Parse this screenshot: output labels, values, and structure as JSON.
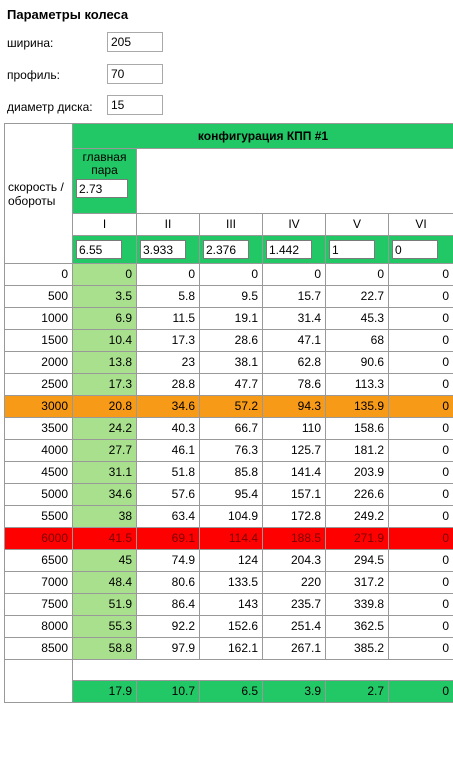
{
  "params": {
    "title": "Параметры колеса",
    "width_label": "ширина:",
    "width_value": "205",
    "profile_label": "профиль:",
    "profile_value": "70",
    "diameter_label": "диаметр диска:",
    "diameter_value": "15"
  },
  "config": {
    "title": "конфигурация КПП #1",
    "speed_label": "скорость / обороты",
    "main_pair_label": "главная пара",
    "main_pair_value": "2.73",
    "gears": [
      {
        "name": "I",
        "ratio": "6.55"
      },
      {
        "name": "II",
        "ratio": "3.933"
      },
      {
        "name": "III",
        "ratio": "2.376"
      },
      {
        "name": "IV",
        "ratio": "1.442"
      },
      {
        "name": "V",
        "ratio": "1"
      },
      {
        "name": "VI",
        "ratio": "0"
      }
    ]
  },
  "colors": {
    "green_header": "#22c766",
    "first_gear_column": "#a8e08e",
    "highlight_orange": "#f79a18",
    "highlight_red": "#ff0000"
  },
  "table": {
    "rows": [
      {
        "rpm": "0",
        "values": [
          "0",
          "0",
          "0",
          "0",
          "0",
          "0"
        ]
      },
      {
        "rpm": "500",
        "values": [
          "3.5",
          "5.8",
          "9.5",
          "15.7",
          "22.7",
          "0"
        ]
      },
      {
        "rpm": "1000",
        "values": [
          "6.9",
          "11.5",
          "19.1",
          "31.4",
          "45.3",
          "0"
        ]
      },
      {
        "rpm": "1500",
        "values": [
          "10.4",
          "17.3",
          "28.6",
          "47.1",
          "68",
          "0"
        ]
      },
      {
        "rpm": "2000",
        "values": [
          "13.8",
          "23",
          "38.1",
          "62.8",
          "90.6",
          "0"
        ]
      },
      {
        "rpm": "2500",
        "values": [
          "17.3",
          "28.8",
          "47.7",
          "78.6",
          "113.3",
          "0"
        ]
      },
      {
        "rpm": "3000",
        "highlight": "orange",
        "values": [
          "20.8",
          "34.6",
          "57.2",
          "94.3",
          "135.9",
          "0"
        ]
      },
      {
        "rpm": "3500",
        "values": [
          "24.2",
          "40.3",
          "66.7",
          "110",
          "158.6",
          "0"
        ]
      },
      {
        "rpm": "4000",
        "values": [
          "27.7",
          "46.1",
          "76.3",
          "125.7",
          "181.2",
          "0"
        ]
      },
      {
        "rpm": "4500",
        "values": [
          "31.1",
          "51.8",
          "85.8",
          "141.4",
          "203.9",
          "0"
        ]
      },
      {
        "rpm": "5000",
        "values": [
          "34.6",
          "57.6",
          "95.4",
          "157.1",
          "226.6",
          "0"
        ]
      },
      {
        "rpm": "5500",
        "values": [
          "38",
          "63.4",
          "104.9",
          "172.8",
          "249.2",
          "0"
        ]
      },
      {
        "rpm": "6000",
        "highlight": "red",
        "values": [
          "41.5",
          "69.1",
          "114.4",
          "188.5",
          "271.9",
          "0"
        ]
      },
      {
        "rpm": "6500",
        "values": [
          "45",
          "74.9",
          "124",
          "204.3",
          "294.5",
          "0"
        ]
      },
      {
        "rpm": "7000",
        "values": [
          "48.4",
          "80.6",
          "133.5",
          "220",
          "317.2",
          "0"
        ]
      },
      {
        "rpm": "7500",
        "values": [
          "51.9",
          "86.4",
          "143",
          "235.7",
          "339.8",
          "0"
        ]
      },
      {
        "rpm": "8000",
        "values": [
          "55.3",
          "92.2",
          "152.6",
          "251.4",
          "362.5",
          "0"
        ]
      },
      {
        "rpm": "8500",
        "values": [
          "58.8",
          "97.9",
          "162.1",
          "267.1",
          "385.2",
          "0"
        ]
      }
    ],
    "footer": [
      "17.9",
      "10.7",
      "6.5",
      "3.9",
      "2.7",
      "0"
    ]
  }
}
